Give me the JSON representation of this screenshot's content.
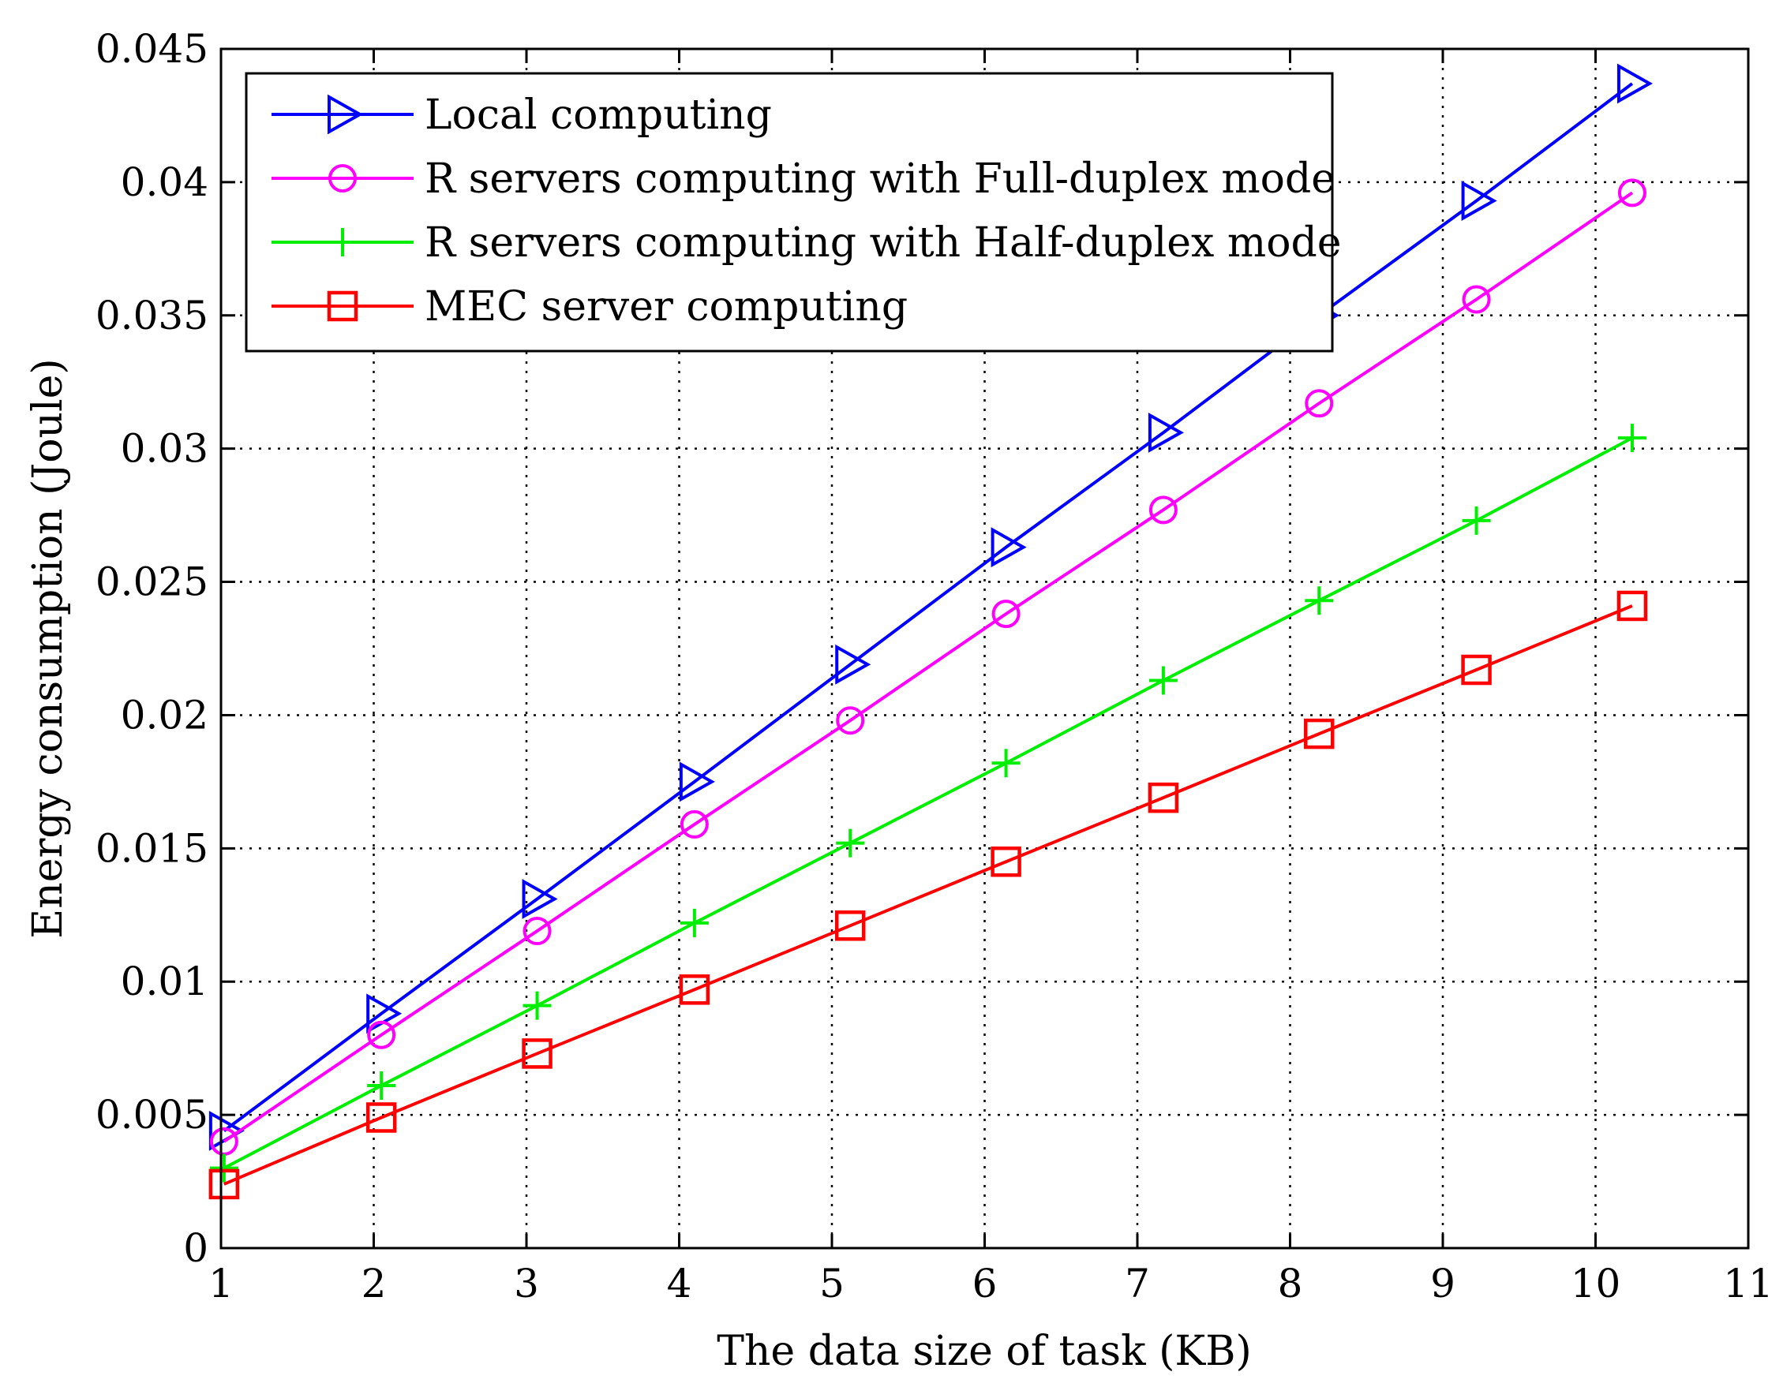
{
  "chart_data": {
    "type": "line",
    "xlabel": "The data size of task (KB)",
    "ylabel": "Energy consumption (Joule)",
    "xlim": [
      1,
      11
    ],
    "ylim": [
      0,
      0.045
    ],
    "xticks": [
      1,
      2,
      3,
      4,
      5,
      6,
      7,
      8,
      9,
      10,
      11
    ],
    "yticks": [
      0,
      0.005,
      0.01,
      0.015,
      0.02,
      0.025,
      0.03,
      0.035,
      0.04,
      0.045
    ],
    "xtick_labels": [
      "1",
      "2",
      "3",
      "4",
      "5",
      "6",
      "7",
      "8",
      "9",
      "10",
      "11"
    ],
    "ytick_labels": [
      "0",
      "0.005",
      "0.01",
      "0.015",
      "0.02",
      "0.025",
      "0.03",
      "0.035",
      "0.04",
      "0.045"
    ],
    "grid": true,
    "grid_style": "dotted",
    "legend_position": "top-left",
    "x": [
      1.02,
      2.05,
      3.07,
      4.1,
      5.12,
      6.14,
      7.17,
      8.19,
      9.22,
      10.24
    ],
    "series": [
      {
        "name": "Local computing",
        "color": "#0000ff",
        "marker": "triangle-right",
        "values": [
          0.0044,
          0.0088,
          0.0131,
          0.0175,
          0.0219,
          0.0263,
          0.0306,
          0.035,
          0.0393,
          0.0437
        ]
      },
      {
        "name": "R servers computing with Full-duplex mode",
        "color": "#ff00ff",
        "marker": "circle",
        "values": [
          0.004,
          0.008,
          0.0119,
          0.0159,
          0.0198,
          0.0238,
          0.0277,
          0.0317,
          0.0356,
          0.0396
        ]
      },
      {
        "name": "R servers computing with Half-duplex mode",
        "color": "#00ee00",
        "marker": "plus",
        "values": [
          0.003,
          0.0061,
          0.0091,
          0.0122,
          0.0152,
          0.0182,
          0.0213,
          0.0243,
          0.0273,
          0.0304
        ]
      },
      {
        "name": "MEC server computing",
        "color": "#ff0000",
        "marker": "square",
        "values": [
          0.0024,
          0.0049,
          0.0073,
          0.0097,
          0.0121,
          0.0145,
          0.0169,
          0.0193,
          0.0217,
          0.0241
        ]
      }
    ]
  }
}
